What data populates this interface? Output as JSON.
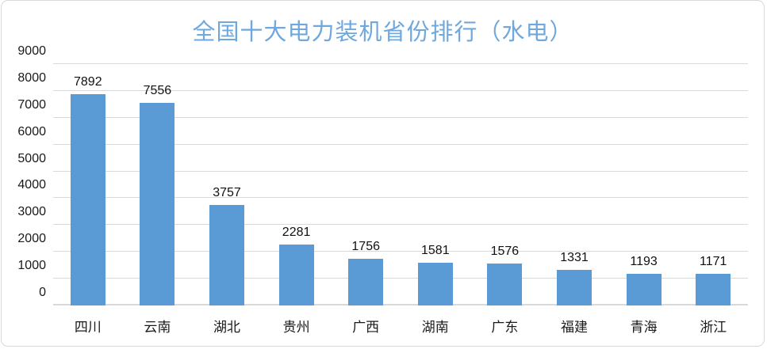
{
  "chart_data": {
    "type": "bar",
    "title": "全国十大电力装机省份排行（水电）",
    "categories": [
      "四川",
      "云南",
      "湖北",
      "贵州",
      "广西",
      "湖南",
      "广东",
      "福建",
      "青海",
      "浙江"
    ],
    "values": [
      7892,
      7556,
      3757,
      2281,
      1756,
      1581,
      1576,
      1331,
      1193,
      1171
    ],
    "xlabel": "",
    "ylabel": "",
    "ylim": [
      0,
      9000
    ],
    "ytick_step": 1000,
    "yticks": [
      0,
      1000,
      2000,
      3000,
      4000,
      5000,
      6000,
      7000,
      8000,
      9000
    ],
    "grid": true,
    "legend_position": "none",
    "data_labels": true,
    "colors": {
      "bar_fill": "#5b9bd5",
      "title_text": "#6fa8dc",
      "gridline": "#d9d9d9",
      "axis_text": "#1a1a1a",
      "card_border": "#d9d9d9",
      "background": "#ffffff"
    }
  }
}
